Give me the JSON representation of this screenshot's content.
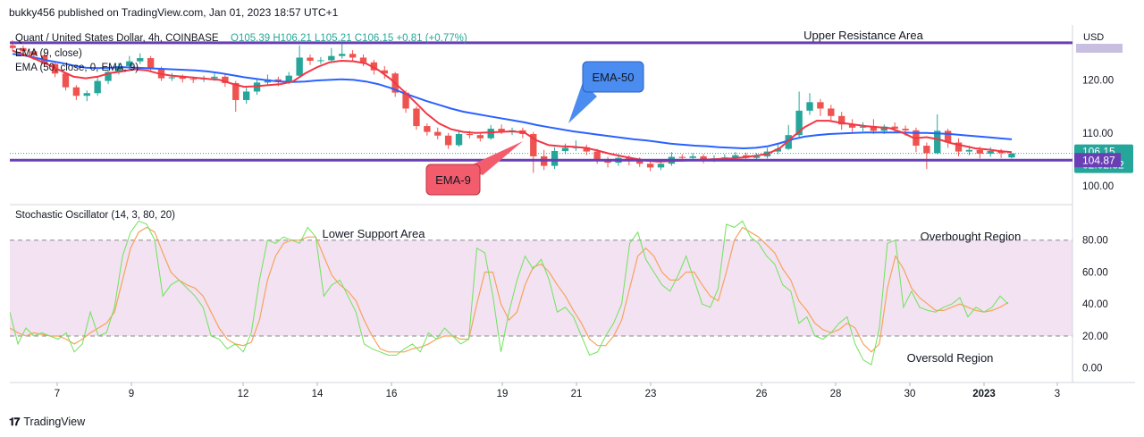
{
  "header": {
    "publisher": "bukky456 published on TradingView.com, Jan 01, 2023 18:57 UTC+1"
  },
  "legend": {
    "symbol": "Quant / United States Dollar, 4h, COINBASE",
    "ohlc": "O105.39  H106.21  L105.21  C106.15  +0.81 (+0.77%)",
    "ema9": "EMA (9, close)",
    "ema50": "EMA (50, close, 0, EMA, 9)",
    "stoch": "Stochastic Oscillator (14, 3, 80, 20)"
  },
  "annotations": {
    "upper": "Upper Resistance Area",
    "lower": "Lower Support Area",
    "overbought": "Overbought Region",
    "oversold": "Oversold Region",
    "ema50_callout": "EMA-50",
    "ema9_callout": "EMA-9"
  },
  "axis": {
    "currency": "USD",
    "price_ticks": [
      "120.00",
      "110.00",
      "100.00"
    ],
    "stoch_ticks": [
      "80.00",
      "60.00",
      "40.00",
      "20.00",
      "0.00"
    ],
    "x_ticks": [
      "7",
      "9",
      "12",
      "14",
      "16",
      "19",
      "21",
      "23",
      "26",
      "28",
      "30",
      "2023",
      "3"
    ],
    "price_badge": "106.15",
    "countdown": "02:02:32",
    "level_badge": "104.87"
  },
  "footer": {
    "brand": "TradingView",
    "logo": "17"
  },
  "colors": {
    "up": "#26a69a",
    "down": "#ef5350",
    "ema9": "#f23645",
    "ema50": "#2962ff",
    "level": "#6a3fb5",
    "stoch_k": "#6fe35a",
    "stoch_d": "#f7a35c",
    "band": "#f2e2f2",
    "ema50_callout": "#4a8cf0",
    "ema9_callout": "#f25c6c"
  },
  "chart_data": [
    {
      "type": "candlestick",
      "title": "Quant / United States Dollar, 4h, COINBASE",
      "ylim": [
        97,
        130
      ],
      "last_close": 106.15,
      "level_lines": [
        127,
        104.87
      ],
      "candles": [
        [
          126.5,
          126,
          127.5,
          125.5
        ],
        [
          126,
          125.4,
          126.5,
          124.5
        ],
        [
          125.4,
          124.6,
          126,
          123.8
        ],
        [
          124.6,
          123,
          125,
          122.5
        ],
        [
          123,
          121.2,
          123.5,
          120.5
        ],
        [
          121.2,
          118.6,
          121.5,
          118
        ],
        [
          118.6,
          117,
          119,
          116.2
        ],
        [
          117,
          117.5,
          118,
          116
        ],
        [
          117.5,
          119.8,
          120.5,
          117
        ],
        [
          119.8,
          121.5,
          122.3,
          119.2
        ],
        [
          121.5,
          122.6,
          123.2,
          121
        ],
        [
          122.6,
          123.5,
          124.5,
          122
        ],
        [
          123.5,
          124.1,
          125,
          123
        ],
        [
          124.1,
          122,
          124.5,
          121.5
        ],
        [
          122,
          120.3,
          122.5,
          119.8
        ],
        [
          120.3,
          120.5,
          121.3,
          119.8
        ],
        [
          120.5,
          120.2,
          121,
          119.5
        ],
        [
          120.2,
          120.1,
          120.6,
          119.4
        ],
        [
          120.1,
          120.3,
          120.8,
          119.6
        ],
        [
          120.3,
          120.6,
          121.2,
          119.8
        ],
        [
          120.6,
          119.4,
          121,
          118.7
        ],
        [
          119.4,
          116.2,
          119.8,
          114
        ],
        [
          116.2,
          117.8,
          118.6,
          115.5
        ],
        [
          117.8,
          119.5,
          120.2,
          117.2
        ],
        [
          119.5,
          120.1,
          121,
          119
        ],
        [
          120.1,
          119.6,
          120.6,
          118.8
        ],
        [
          119.6,
          120.8,
          121.5,
          119.2
        ],
        [
          120.8,
          124.2,
          126.5,
          120.4
        ],
        [
          124.2,
          123.6,
          124.8,
          122.8
        ],
        [
          123.6,
          123.7,
          124.3,
          123
        ],
        [
          123.7,
          124.5,
          126,
          123.2
        ],
        [
          124.5,
          124.9,
          126.8,
          124
        ],
        [
          124.9,
          124.2,
          125.6,
          123.6
        ],
        [
          124.2,
          123.3,
          124.8,
          122.6
        ],
        [
          123.3,
          121.8,
          123.8,
          121
        ],
        [
          121.8,
          121.2,
          122.6,
          120.2
        ],
        [
          121.2,
          117.6,
          121.5,
          116.8
        ],
        [
          117.6,
          114.6,
          118,
          113.8
        ],
        [
          114.6,
          111.3,
          115,
          110.6
        ],
        [
          111.3,
          110.2,
          111.8,
          109.5
        ],
        [
          110.2,
          109.5,
          111,
          108.8
        ],
        [
          109.5,
          107.7,
          110,
          107
        ],
        [
          107.7,
          109.8,
          110.5,
          107.4
        ],
        [
          109.8,
          109.6,
          110.4,
          109
        ],
        [
          109.6,
          109,
          110.1,
          108.4
        ],
        [
          109,
          110.8,
          111.5,
          108.7
        ],
        [
          110.8,
          110.2,
          111.6,
          109.8
        ],
        [
          110.2,
          110.5,
          111,
          109.6
        ],
        [
          110.5,
          109.8,
          111,
          109
        ],
        [
          109.8,
          105.6,
          110.2,
          102.5
        ],
        [
          105.6,
          103.8,
          106.8,
          103
        ],
        [
          103.8,
          106.6,
          107.3,
          103.2
        ],
        [
          106.6,
          107.2,
          108,
          106
        ],
        [
          107.2,
          107.3,
          108.6,
          106.6
        ],
        [
          107.3,
          106.5,
          107.8,
          105.8
        ],
        [
          106.5,
          104.8,
          107,
          104.2
        ],
        [
          104.8,
          104.4,
          105.5,
          103.5
        ],
        [
          104.4,
          105.3,
          106,
          103.8
        ],
        [
          105.3,
          104.8,
          105.8,
          103.9
        ],
        [
          104.8,
          104.2,
          105.4,
          103.6
        ],
        [
          104.2,
          103.5,
          104.8,
          102.8
        ],
        [
          103.5,
          104.2,
          104.8,
          103
        ],
        [
          104.2,
          105.5,
          106.4,
          103.8
        ],
        [
          105.5,
          105.3,
          106,
          104.6
        ],
        [
          105.3,
          105.6,
          106.2,
          104.8
        ],
        [
          105.6,
          105,
          106,
          104.3
        ],
        [
          105,
          105.2,
          105.8,
          104.5
        ],
        [
          105.2,
          105.4,
          106,
          104.8
        ],
        [
          105.4,
          105.8,
          106.4,
          105.1
        ],
        [
          105.8,
          105.3,
          106.3,
          104.6
        ],
        [
          105.3,
          105.6,
          106.2,
          104.7
        ],
        [
          105.6,
          106.5,
          107.2,
          105.2
        ],
        [
          106.5,
          107,
          107.8,
          106
        ],
        [
          107,
          109.6,
          111.5,
          106.8
        ],
        [
          109.6,
          114.2,
          117.8,
          109.2
        ],
        [
          114.2,
          115.8,
          117.5,
          113.4
        ],
        [
          115.8,
          114.6,
          116.4,
          113.2
        ],
        [
          114.6,
          113.2,
          115.3,
          112.4
        ],
        [
          113.2,
          111.6,
          114,
          110.6
        ],
        [
          111.6,
          111,
          112.6,
          110.2
        ],
        [
          111,
          111.2,
          112,
          110.3
        ],
        [
          111.2,
          110.4,
          112.6,
          109.8
        ],
        [
          110.4,
          111.2,
          111.6,
          109.8
        ],
        [
          111.2,
          110.8,
          112,
          110.2
        ],
        [
          110.8,
          110.5,
          111.4,
          109.5
        ],
        [
          110.5,
          107.6,
          111,
          106.4
        ],
        [
          107.6,
          106.2,
          108.2,
          103.2
        ],
        [
          106.2,
          110.4,
          113.5,
          106
        ],
        [
          110.4,
          108.2,
          110.8,
          107.2
        ],
        [
          108.2,
          106.5,
          109,
          105.6
        ],
        [
          106.5,
          106.8,
          107.6,
          105.8
        ],
        [
          106.8,
          106.1,
          107.4,
          105.2
        ],
        [
          106.1,
          106.6,
          107.3,
          105.5
        ],
        [
          106.6,
          106.2,
          107,
          105.3
        ],
        [
          105.39,
          106.15,
          106.21,
          105.21
        ]
      ],
      "ema9": [
        125.5,
        124.7,
        123.8,
        122.8,
        121.7,
        120.6,
        120.3,
        120.6,
        121.3,
        121.6,
        122,
        121.8,
        121.2,
        120.8,
        120.6,
        120.4,
        120.2,
        120,
        119.3,
        118.7,
        118.8,
        119,
        119.2,
        119.7,
        121.2,
        122.4,
        123.3,
        123.6,
        123.5,
        123.1,
        121.9,
        120.2,
        118.1,
        115.9,
        113.6,
        111.8,
        110.7,
        110.2,
        110,
        110.1,
        110.2,
        110.3,
        110.1,
        108.6,
        107.7,
        107.5,
        107.4,
        107.2,
        106.7,
        106.1,
        105.6,
        105.2,
        104.8,
        104.6,
        104.7,
        104.8,
        104.9,
        105,
        105.1,
        105.2,
        105.4,
        105.7,
        106.1,
        107.2,
        109.2,
        111.1,
        112.3,
        112.3,
        111.9,
        111.6,
        111.3,
        111.1,
        110.9,
        110.1,
        109,
        109.2,
        108.8,
        108.1,
        107.6,
        107.1,
        106.9,
        106.6,
        106.4
      ],
      "ema50": [
        124.9,
        124.6,
        124.1,
        123.6,
        123.2,
        122.7,
        122.3,
        122.2,
        122.3,
        122.4,
        122.3,
        122.2,
        122.1,
        122,
        121.9,
        121.8,
        121.6,
        121.3,
        120.9,
        120.5,
        120.2,
        119.9,
        119.7,
        119.6,
        119.7,
        119.9,
        120,
        120.1,
        120,
        119.7,
        119.2,
        118.5,
        117.6,
        116.8,
        116,
        115.3,
        114.6,
        114,
        113.6,
        113.2,
        112.8,
        112.4,
        112,
        111.5,
        111.1,
        110.7,
        110.3,
        110,
        109.7,
        109.4,
        109.1,
        108.8,
        108.6,
        108.3,
        108,
        107.8,
        107.6,
        107.5,
        107.3,
        107.2,
        107.1,
        107.2,
        107.5,
        108.1,
        108.8,
        109.3,
        109.6,
        109.8,
        109.9,
        110,
        110.1,
        110.1,
        110.1,
        110.1,
        110,
        110,
        109.9,
        109.8,
        109.6,
        109.4,
        109.2,
        109,
        108.8
      ]
    },
    {
      "type": "line",
      "title": "Stochastic Oscillator (14, 3, 80, 20)",
      "ylim": [
        -8,
        100
      ],
      "levels": [
        80,
        20
      ],
      "series": [
        {
          "name": "%K",
          "values": [
            35,
            15,
            25,
            20,
            22,
            20,
            18,
            22,
            10,
            15,
            35,
            20,
            22,
            38,
            70,
            85,
            92,
            90,
            80,
            45,
            52,
            55,
            50,
            45,
            38,
            20,
            18,
            12,
            15,
            10,
            22,
            55,
            80,
            78,
            82,
            80,
            78,
            88,
            82,
            45,
            52,
            55,
            45,
            35,
            15,
            12,
            10,
            8,
            8,
            12,
            15,
            10,
            22,
            18,
            25,
            20,
            15,
            18,
            75,
            72,
            45,
            10,
            35,
            55,
            70,
            62,
            68,
            55,
            35,
            38,
            32,
            20,
            8,
            10,
            20,
            28,
            40,
            78,
            85,
            68,
            60,
            52,
            48,
            58,
            70,
            55,
            40,
            38,
            50,
            90,
            88,
            92,
            82,
            78,
            70,
            65,
            52,
            48,
            28,
            32,
            20,
            18,
            22,
            28,
            32,
            15,
            5,
            2,
            25,
            78,
            80,
            38,
            48,
            38,
            36,
            35,
            38,
            40,
            44,
            32,
            38,
            35,
            38,
            45,
            40
          ]
        },
        {
          "name": "%D",
          "values": [
            25,
            22,
            20,
            22,
            21,
            20,
            20,
            18,
            15,
            18,
            22,
            25,
            28,
            35,
            55,
            75,
            85,
            88,
            85,
            72,
            60,
            55,
            52,
            50,
            45,
            35,
            25,
            18,
            15,
            14,
            16,
            30,
            55,
            70,
            78,
            80,
            80,
            82,
            82,
            70,
            58,
            52,
            48,
            42,
            30,
            20,
            12,
            10,
            10,
            10,
            12,
            13,
            15,
            18,
            20,
            20,
            18,
            18,
            40,
            60,
            60,
            40,
            30,
            35,
            52,
            63,
            65,
            60,
            52,
            45,
            36,
            28,
            18,
            14,
            14,
            20,
            30,
            50,
            70,
            75,
            70,
            60,
            55,
            55,
            60,
            60,
            52,
            45,
            42,
            60,
            80,
            88,
            85,
            82,
            77,
            72,
            62,
            55,
            42,
            36,
            28,
            24,
            22,
            24,
            28,
            25,
            15,
            10,
            15,
            50,
            70,
            62,
            50,
            44,
            40,
            36,
            36,
            38,
            40,
            38,
            36,
            35,
            36,
            38,
            41
          ]
        }
      ]
    }
  ]
}
